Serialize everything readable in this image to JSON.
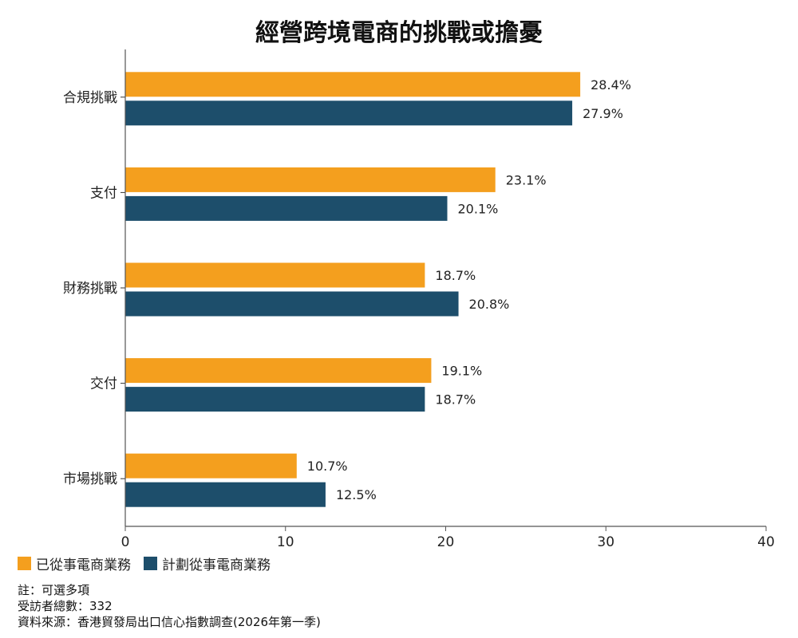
{
  "chart_data": {
    "type": "bar",
    "orientation": "horizontal",
    "title": "經營跨境電商的挑戰或擔憂",
    "categories": [
      "合規挑戰",
      "支付",
      "財務挑戰",
      "交付",
      "市場挑戰"
    ],
    "series": [
      {
        "name": "已從事電商業務",
        "color": "#F49F1E",
        "values": [
          28.4,
          23.1,
          18.7,
          19.1,
          10.7
        ],
        "labels": [
          "28.4%",
          "23.1%",
          "18.7%",
          "19.1%",
          "10.7%"
        ]
      },
      {
        "name": "計劃從事電商業務",
        "color": "#1D4E6B",
        "values": [
          27.9,
          20.1,
          20.8,
          18.7,
          12.5
        ],
        "labels": [
          "27.9%",
          "20.1%",
          "20.8%",
          "18.7%",
          "12.5%"
        ]
      }
    ],
    "xlim": [
      0,
      40
    ],
    "xticks": [
      0,
      10,
      20,
      30,
      40
    ],
    "xtick_labels": [
      "0",
      "10",
      "20",
      "30",
      "40"
    ],
    "grid": false,
    "legend_position": "bottom-left"
  },
  "notes": [
    "註：可選多項",
    "受訪者總數：332",
    "資料來源：香港貿發局出口信心指數調查(2026年第一季)"
  ]
}
